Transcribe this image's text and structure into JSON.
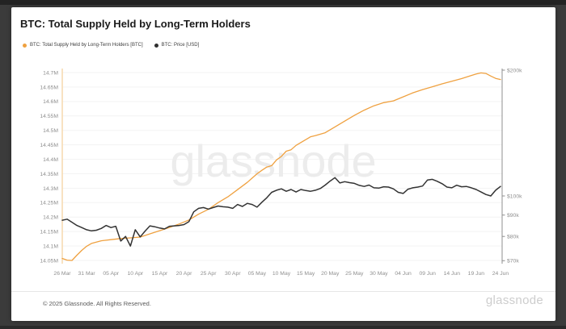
{
  "window": {
    "frame_color": "#3b3b3b",
    "top_edge_color": "#232323",
    "card_color": "#ffffff"
  },
  "header": {
    "title": "BTC: Total Supply Held by Long-Term Holders"
  },
  "legend": [
    {
      "label": "BTC: Total Supply Held by Long-Term Holders [BTC]",
      "color": "#efa140"
    },
    {
      "label": "BTC: Price [USD]",
      "color": "#2f2f2f"
    }
  ],
  "watermark": "glassnode",
  "footer": {
    "copyright": "© 2025 Glassnode. All Rights Reserved.",
    "logo": "glassnode"
  },
  "chart_data": {
    "type": "line",
    "title": "BTC: Total Supply Held by Long-Term Holders",
    "x_unit": "date (day offset from 26 Mar)",
    "grid": true,
    "legend_position": "top-left",
    "colors": {
      "grid": "#f3f3f3",
      "left_axis_line": "#f5d9ad",
      "right_axis_line": "#8f8f8f",
      "tick_text": "#8f8f8f",
      "watermark": "#ececec"
    },
    "x_ticks": [
      {
        "label": "26 Mar",
        "day": 0
      },
      {
        "label": "31 Mar",
        "day": 5
      },
      {
        "label": "05 Apr",
        "day": 10
      },
      {
        "label": "10 Apr",
        "day": 15
      },
      {
        "label": "15 Apr",
        "day": 20
      },
      {
        "label": "20 Apr",
        "day": 25
      },
      {
        "label": "25 Apr",
        "day": 30
      },
      {
        "label": "30 Apr",
        "day": 35
      },
      {
        "label": "05 May",
        "day": 40
      },
      {
        "label": "10 May",
        "day": 45
      },
      {
        "label": "15 May",
        "day": 50
      },
      {
        "label": "20 May",
        "day": 55
      },
      {
        "label": "25 May",
        "day": 60
      },
      {
        "label": "30 May",
        "day": 65
      },
      {
        "label": "04 Jun",
        "day": 70
      },
      {
        "label": "09 Jun",
        "day": 75
      },
      {
        "label": "14 Jun",
        "day": 80
      },
      {
        "label": "19 Jun",
        "day": 85
      },
      {
        "label": "24 Jun",
        "day": 90
      }
    ],
    "left_axis": {
      "unit": "M BTC",
      "scale": "linear",
      "min": 14.05,
      "max": 14.7,
      "ticks": [
        {
          "label": "14.7M",
          "value": 14.7
        },
        {
          "label": "14.65M",
          "value": 14.65
        },
        {
          "label": "14.6M",
          "value": 14.6
        },
        {
          "label": "14.55M",
          "value": 14.55
        },
        {
          "label": "14.5M",
          "value": 14.5
        },
        {
          "label": "14.45M",
          "value": 14.45
        },
        {
          "label": "14.4M",
          "value": 14.4
        },
        {
          "label": "14.35M",
          "value": 14.35
        },
        {
          "label": "14.3M",
          "value": 14.3
        },
        {
          "label": "14.25M",
          "value": 14.25
        },
        {
          "label": "14.2M",
          "value": 14.2
        },
        {
          "label": "14.15M",
          "value": 14.15
        },
        {
          "label": "14.1M",
          "value": 14.1
        },
        {
          "label": "14.05M",
          "value": 14.05
        }
      ]
    },
    "right_axis": {
      "unit": "USD (thousands)",
      "scale": "log",
      "min": 70,
      "max": 200,
      "ticks": [
        {
          "label": "$200k",
          "value": 200
        },
        {
          "label": "$100k",
          "value": 100
        },
        {
          "label": "$90k",
          "value": 90
        },
        {
          "label": "$80k",
          "value": 80
        },
        {
          "label": "$70k",
          "value": 70
        }
      ]
    },
    "series": [
      {
        "name": "BTC: Total Supply Held by Long-Term Holders [BTC]",
        "axis": "left",
        "color": "#efa140",
        "width": 1.3,
        "points": [
          [
            0,
            14.057
          ],
          [
            1,
            14.051
          ],
          [
            2,
            14.05
          ],
          [
            3,
            14.068
          ],
          [
            4,
            14.085
          ],
          [
            5,
            14.099
          ],
          [
            6,
            14.109
          ],
          [
            8,
            14.118
          ],
          [
            10,
            14.122
          ],
          [
            12,
            14.126
          ],
          [
            14,
            14.128
          ],
          [
            16,
            14.131
          ],
          [
            18,
            14.142
          ],
          [
            20,
            14.153
          ],
          [
            22,
            14.164
          ],
          [
            24,
            14.176
          ],
          [
            26,
            14.19
          ],
          [
            28,
            14.21
          ],
          [
            30,
            14.227
          ],
          [
            32,
            14.25
          ],
          [
            34,
            14.27
          ],
          [
            36,
            14.295
          ],
          [
            38,
            14.32
          ],
          [
            40,
            14.35
          ],
          [
            41,
            14.362
          ],
          [
            42,
            14.373
          ],
          [
            43,
            14.378
          ],
          [
            44,
            14.398
          ],
          [
            45,
            14.41
          ],
          [
            46,
            14.428
          ],
          [
            47,
            14.433
          ],
          [
            48,
            14.448
          ],
          [
            50,
            14.468
          ],
          [
            51,
            14.478
          ],
          [
            52,
            14.482
          ],
          [
            53,
            14.487
          ],
          [
            54,
            14.492
          ],
          [
            56,
            14.512
          ],
          [
            58,
            14.532
          ],
          [
            60,
            14.552
          ],
          [
            62,
            14.57
          ],
          [
            64,
            14.585
          ],
          [
            66,
            14.596
          ],
          [
            68,
            14.602
          ],
          [
            70,
            14.616
          ],
          [
            72,
            14.63
          ],
          [
            74,
            14.641
          ],
          [
            76,
            14.651
          ],
          [
            78,
            14.661
          ],
          [
            80,
            14.67
          ],
          [
            82,
            14.679
          ],
          [
            84,
            14.69
          ],
          [
            85,
            14.695
          ],
          [
            86,
            14.699
          ],
          [
            87,
            14.697
          ],
          [
            88,
            14.688
          ],
          [
            89,
            14.68
          ],
          [
            90,
            14.676
          ]
        ]
      },
      {
        "name": "BTC: Price [USD]",
        "axis": "right",
        "color": "#333333",
        "width": 1.5,
        "points": [
          [
            0,
            87.5
          ],
          [
            1,
            88.0
          ],
          [
            2,
            86.5
          ],
          [
            3,
            85.0
          ],
          [
            4,
            84.0
          ],
          [
            5,
            83.0
          ],
          [
            6,
            82.5
          ],
          [
            7,
            82.8
          ],
          [
            8,
            83.6
          ],
          [
            9,
            85.0
          ],
          [
            10,
            84.0
          ],
          [
            11,
            84.6
          ],
          [
            12,
            78.0
          ],
          [
            13,
            80.0
          ],
          [
            14,
            75.9
          ],
          [
            15,
            83.0
          ],
          [
            16,
            79.8
          ],
          [
            17,
            82.4
          ],
          [
            18,
            84.8
          ],
          [
            19,
            84.4
          ],
          [
            20,
            83.8
          ],
          [
            21,
            83.4
          ],
          [
            22,
            84.6
          ],
          [
            23,
            84.8
          ],
          [
            24,
            85.0
          ],
          [
            25,
            85.4
          ],
          [
            26,
            86.8
          ],
          [
            27,
            91.6
          ],
          [
            28,
            93.4
          ],
          [
            29,
            93.8
          ],
          [
            30,
            93.0
          ],
          [
            31,
            93.8
          ],
          [
            32,
            94.6
          ],
          [
            33,
            94.2
          ],
          [
            34,
            94.0
          ],
          [
            35,
            93.4
          ],
          [
            36,
            95.4
          ],
          [
            37,
            94.4
          ],
          [
            38,
            96.0
          ],
          [
            39,
            95.4
          ],
          [
            40,
            94.0
          ],
          [
            41,
            96.6
          ],
          [
            42,
            99.0
          ],
          [
            43,
            102.0
          ],
          [
            44,
            103.2
          ],
          [
            45,
            104.0
          ],
          [
            46,
            102.6
          ],
          [
            47,
            103.6
          ],
          [
            48,
            102.2
          ],
          [
            49,
            103.6
          ],
          [
            50,
            103.0
          ],
          [
            51,
            102.6
          ],
          [
            52,
            103.2
          ],
          [
            53,
            104.2
          ],
          [
            54,
            106.2
          ],
          [
            55,
            108.5
          ],
          [
            56,
            110.6
          ],
          [
            57,
            107.4
          ],
          [
            58,
            108.2
          ],
          [
            59,
            107.6
          ],
          [
            60,
            107.2
          ],
          [
            61,
            106.0
          ],
          [
            62,
            105.4
          ],
          [
            63,
            106.2
          ],
          [
            64,
            104.6
          ],
          [
            65,
            104.4
          ],
          [
            66,
            105.2
          ],
          [
            67,
            105.0
          ],
          [
            68,
            104.0
          ],
          [
            69,
            102.0
          ],
          [
            70,
            101.4
          ],
          [
            71,
            103.8
          ],
          [
            72,
            104.6
          ],
          [
            73,
            105.0
          ],
          [
            74,
            105.6
          ],
          [
            75,
            109.2
          ],
          [
            76,
            109.6
          ],
          [
            77,
            108.4
          ],
          [
            78,
            107.0
          ],
          [
            79,
            105.0
          ],
          [
            80,
            104.6
          ],
          [
            81,
            106.1
          ],
          [
            82,
            105.2
          ],
          [
            83,
            105.4
          ],
          [
            84,
            104.6
          ],
          [
            85,
            103.6
          ],
          [
            86,
            102.2
          ],
          [
            87,
            100.8
          ],
          [
            88,
            100.0
          ],
          [
            89,
            103.2
          ],
          [
            90,
            105.4
          ]
        ]
      }
    ]
  }
}
